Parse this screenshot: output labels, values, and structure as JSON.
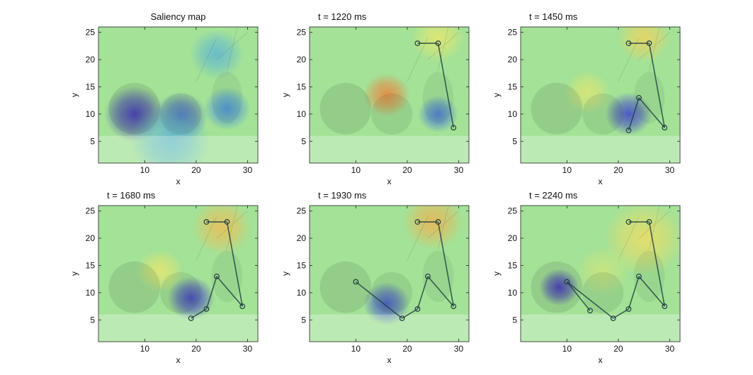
{
  "chart_data": [
    {
      "type": "heatmap",
      "title": "Saliency map",
      "xlabel": "x",
      "ylabel": "y",
      "xlim": [
        1,
        32
      ],
      "ylim": [
        1,
        26
      ],
      "xticks": [
        10,
        20,
        30
      ],
      "yticks": [
        5,
        10,
        15,
        20,
        25
      ],
      "scanpath": [],
      "saliency_blobs": [
        {
          "x": 8,
          "y": 10,
          "level": -1.0,
          "spread": 4.5
        },
        {
          "x": 17,
          "y": 9.5,
          "level": -0.8,
          "spread": 4
        },
        {
          "x": 26,
          "y": 11,
          "level": -0.6,
          "spread": 3.5
        },
        {
          "x": 24,
          "y": 21,
          "level": -0.35,
          "spread": 4
        },
        {
          "x": 15,
          "y": 5,
          "level": -0.35,
          "spread": 6
        }
      ]
    },
    {
      "type": "heatmap",
      "title": "t = 1220 ms",
      "xlabel": "x",
      "ylabel": "y",
      "xlim": [
        1,
        32
      ],
      "ylim": [
        1,
        26
      ],
      "xticks": [
        10,
        20,
        30
      ],
      "yticks": [
        5,
        10,
        15,
        20,
        25
      ],
      "scanpath": [
        [
          22,
          23
        ],
        [
          26,
          23
        ],
        [
          29,
          7.5
        ]
      ],
      "saliency_blobs": [
        {
          "x": 16,
          "y": 13.5,
          "level": 1.0,
          "spread": 3.5
        },
        {
          "x": 26,
          "y": 24,
          "level": 0.45,
          "spread": 4
        },
        {
          "x": 26,
          "y": 10,
          "level": -0.7,
          "spread": 3
        }
      ]
    },
    {
      "type": "heatmap",
      "title": "t = 1450 ms",
      "xlabel": "x",
      "ylabel": "y",
      "xlim": [
        1,
        32
      ],
      "ylim": [
        1,
        26
      ],
      "xticks": [
        10,
        20,
        30
      ],
      "yticks": [
        5,
        10,
        15,
        20,
        25
      ],
      "scanpath": [
        [
          22,
          23
        ],
        [
          26,
          23
        ],
        [
          29,
          7.5
        ],
        [
          24,
          13
        ],
        [
          22,
          7
        ]
      ],
      "saliency_blobs": [
        {
          "x": 25,
          "y": 24,
          "level": 0.6,
          "spread": 4
        },
        {
          "x": 14,
          "y": 14,
          "level": 0.4,
          "spread": 3.5
        },
        {
          "x": 22,
          "y": 10,
          "level": -0.9,
          "spread": 3.5
        }
      ]
    },
    {
      "type": "heatmap",
      "title": "t = 1680 ms",
      "xlabel": "x",
      "ylabel": "y",
      "xlim": [
        1,
        32
      ],
      "ylim": [
        1,
        26
      ],
      "xticks": [
        10,
        20,
        30
      ],
      "yticks": [
        5,
        10,
        15,
        20,
        25
      ],
      "scanpath": [
        [
          22,
          23
        ],
        [
          26,
          23
        ],
        [
          29,
          7.5
        ],
        [
          24,
          13
        ],
        [
          22,
          7
        ],
        [
          19,
          5.3
        ]
      ],
      "saliency_blobs": [
        {
          "x": 25,
          "y": 22,
          "level": 0.7,
          "spread": 4.5
        },
        {
          "x": 13,
          "y": 14,
          "level": 0.45,
          "spread": 3.5
        },
        {
          "x": 19,
          "y": 9,
          "level": -0.95,
          "spread": 3.5
        }
      ]
    },
    {
      "type": "heatmap",
      "title": "t = 1930 ms",
      "xlabel": "x",
      "ylabel": "y",
      "xlim": [
        1,
        32
      ],
      "ylim": [
        1,
        26
      ],
      "xticks": [
        10,
        20,
        30
      ],
      "yticks": [
        5,
        10,
        15,
        20,
        25
      ],
      "scanpath": [
        [
          22,
          23
        ],
        [
          26,
          23
        ],
        [
          29,
          7.5
        ],
        [
          24,
          13
        ],
        [
          22,
          7
        ],
        [
          19,
          5.3
        ],
        [
          10,
          12
        ]
      ],
      "saliency_blobs": [
        {
          "x": 25,
          "y": 23,
          "level": 0.75,
          "spread": 4.5
        },
        {
          "x": 16,
          "y": 8,
          "level": -0.85,
          "spread": 3.5
        }
      ]
    },
    {
      "type": "heatmap",
      "title": "t = 2240 ms",
      "xlabel": "x",
      "ylabel": "y",
      "xlim": [
        1,
        32
      ],
      "ylim": [
        1,
        26
      ],
      "xticks": [
        10,
        20,
        30
      ],
      "yticks": [
        5,
        10,
        15,
        20,
        25
      ],
      "scanpath": [
        [
          22,
          23
        ],
        [
          26,
          23
        ],
        [
          29,
          7.5
        ],
        [
          24,
          13
        ],
        [
          22,
          7
        ],
        [
          19,
          5.3
        ],
        [
          10,
          12
        ],
        [
          14.5,
          6.7
        ]
      ],
      "saliency_blobs": [
        {
          "x": 25,
          "y": 20,
          "level": 0.55,
          "spread": 6
        },
        {
          "x": 8.5,
          "y": 11,
          "level": -1.0,
          "spread": 3
        },
        {
          "x": 17,
          "y": 14,
          "level": 0.3,
          "spread": 4
        }
      ]
    }
  ]
}
